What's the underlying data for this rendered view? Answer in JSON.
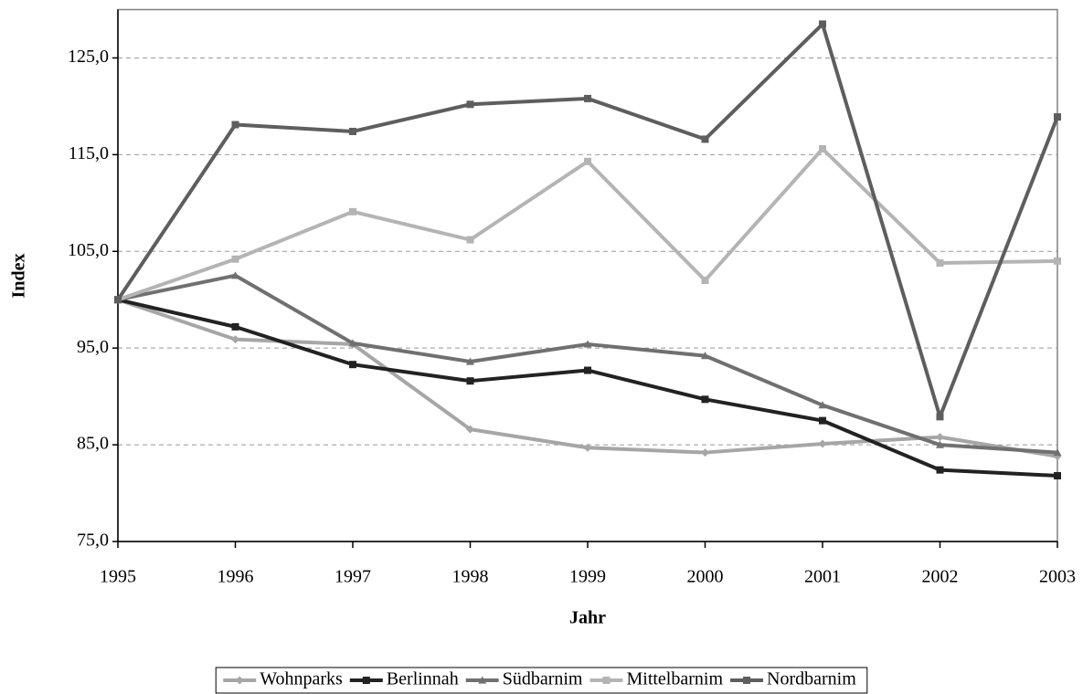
{
  "chart_data": {
    "type": "line",
    "x_label": "Jahr",
    "y_label": "Index",
    "x": [
      1995,
      1996,
      1997,
      1998,
      1999,
      2000,
      2001,
      2002,
      2003
    ],
    "xlim": [
      1995,
      2003
    ],
    "xticks": [
      1995,
      1996,
      1997,
      1998,
      1999,
      2000,
      2001,
      2002,
      2003
    ],
    "ylim": [
      75,
      130
    ],
    "yticks": [
      {
        "value": 75,
        "label": "75,0"
      },
      {
        "value": 85,
        "label": "85,0"
      },
      {
        "value": 95,
        "label": "95,0"
      },
      {
        "value": 105,
        "label": "105,0"
      },
      {
        "value": 115,
        "label": "115,0"
      },
      {
        "value": 125,
        "label": "125,0"
      }
    ],
    "grid": true,
    "legend": "bottom",
    "series": [
      {
        "name": "Wohnparks",
        "color": "#a6a6a6",
        "marker": "diamond",
        "values": [
          100,
          95.9,
          95.4,
          86.6,
          84.7,
          84.2,
          85.1,
          85.8,
          83.8
        ]
      },
      {
        "name": "Berlinnah",
        "color": "#222222",
        "marker": "square",
        "values": [
          100,
          97.2,
          93.3,
          91.6,
          92.7,
          89.7,
          87.5,
          82.4,
          81.8
        ]
      },
      {
        "name": "Südbarnim",
        "color": "#707070",
        "marker": "triangle",
        "values": [
          100,
          102.5,
          95.5,
          93.6,
          95.4,
          94.2,
          89.1,
          85.0,
          84.2
        ]
      },
      {
        "name": "Mittelbarnim",
        "color": "#b4b4b4",
        "marker": "square",
        "values": [
          100,
          104.2,
          109.1,
          106.2,
          114.3,
          102.0,
          115.6,
          103.8,
          104.0
        ]
      },
      {
        "name": "Nordbarnim",
        "color": "#5e5e5e",
        "marker": "square",
        "values": [
          100,
          118.1,
          117.4,
          120.2,
          120.8,
          116.6,
          128.5,
          87.9,
          118.9
        ]
      }
    ]
  }
}
